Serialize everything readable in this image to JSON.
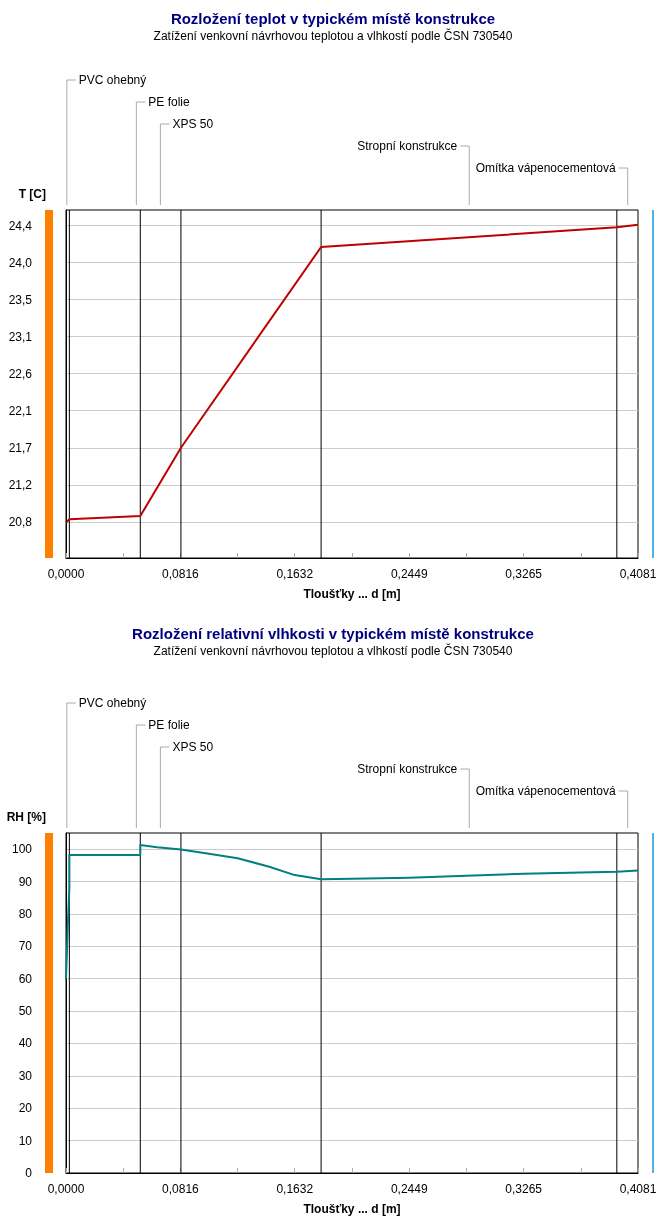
{
  "chart_data": [
    {
      "type": "line",
      "title": "Rozložení teplot v typickém místě konstrukce",
      "subtitle": "Zatížení venkovní návrhovou teplotou a vlhkostí podle ČSN 730540",
      "xlabel": "Tloušťky ... d [m]",
      "ylabel": "T [C]",
      "x": [
        0,
        0.0024,
        0.053,
        0.082,
        0.182,
        0.393,
        0.4081
      ],
      "series": [
        {
          "color": "#c00000",
          "values": [
            20.79,
            20.83,
            20.87,
            21.7,
            24.14,
            24.38,
            24.41
          ]
        }
      ],
      "xlim": [
        0,
        0.4081
      ],
      "xticks": [
        {
          "value": 0,
          "label": "0,0000"
        },
        {
          "value": 0.0408,
          "label": null
        },
        {
          "value": 0.0816,
          "label": "0,0816"
        },
        {
          "value": 0.1224,
          "label": null
        },
        {
          "value": 0.1632,
          "label": "0,1632"
        },
        {
          "value": 0.204,
          "label": null
        },
        {
          "value": 0.2449,
          "label": "0,2449"
        },
        {
          "value": 0.2857,
          "label": null
        },
        {
          "value": 0.3265,
          "label": "0,3265"
        },
        {
          "value": 0.3673,
          "label": null
        },
        {
          "value": 0.4081,
          "label": "0,4081"
        }
      ],
      "ylim": [
        20.36,
        24.59
      ],
      "yticks": [
        {
          "value": 20.8,
          "label": "20,8"
        },
        {
          "value": 21.25,
          "label": "21,2"
        },
        {
          "value": 21.7,
          "label": "21,7"
        },
        {
          "value": 22.15,
          "label": "22,1"
        },
        {
          "value": 22.6,
          "label": "22,6"
        },
        {
          "value": 23.05,
          "label": "23,1"
        },
        {
          "value": 23.5,
          "label": "23,5"
        },
        {
          "value": 23.95,
          "label": "24,0"
        },
        {
          "value": 24.4,
          "label": "24,4"
        }
      ],
      "ref_lines": [
        {
          "axis": "x",
          "value": 0.0024,
          "color": "#000000"
        },
        {
          "axis": "x",
          "value": 0.053,
          "color": "#000000"
        },
        {
          "axis": "x",
          "value": 0.082,
          "color": "#000000"
        },
        {
          "axis": "x",
          "value": 0.182,
          "color": "#000000"
        },
        {
          "axis": "x",
          "value": 0.393,
          "color": "#000000"
        }
      ],
      "annotations": [
        "PVC ohebný",
        "PE folie",
        "XPS 50",
        "Stropní konstrukce",
        "Omítka vápenocementová"
      ],
      "grid": "y",
      "marker": "none",
      "line_style": "solid"
    },
    {
      "type": "line",
      "title": "Rozložení relativní vlhkosti v typickém místě konstrukce",
      "subtitle": "Zatížení venkovní návrhovou teplotou a vlhkostí podle ČSN 730540",
      "xlabel": "Tloušťky ... d [m]",
      "ylabel": "RH [%]",
      "x": [
        0,
        0.0008,
        0.0016,
        0.0024,
        0.0024,
        0.053,
        0.053,
        0.065,
        0.082,
        0.102,
        0.1224,
        0.145,
        0.1632,
        0.182,
        0.204,
        0.2449,
        0.2857,
        0.3265,
        0.3673,
        0.393,
        0.4081
      ],
      "series": [
        {
          "color": "#008080",
          "values": [
            60,
            70,
            80,
            88,
            98.2,
            98.2,
            101.3,
            100.6,
            99.9,
            98.6,
            97.2,
            94.6,
            92,
            90.7,
            90.9,
            91.2,
            91.8,
            92.4,
            92.8,
            93,
            93.4
          ]
        }
      ],
      "xlim": [
        0,
        0.4081
      ],
      "xticks": [
        {
          "value": 0,
          "label": "0,0000"
        },
        {
          "value": 0.0408,
          "label": null
        },
        {
          "value": 0.0816,
          "label": "0,0816"
        },
        {
          "value": 0.1224,
          "label": null
        },
        {
          "value": 0.1632,
          "label": "0,1632"
        },
        {
          "value": 0.204,
          "label": null
        },
        {
          "value": 0.2449,
          "label": "0,2449"
        },
        {
          "value": 0.2857,
          "label": null
        },
        {
          "value": 0.3265,
          "label": "0,3265"
        },
        {
          "value": 0.3673,
          "label": null
        },
        {
          "value": 0.4081,
          "label": "0,4081"
        }
      ],
      "ylim": [
        0,
        105
      ],
      "yticks": [
        0,
        10,
        20,
        30,
        40,
        50,
        60,
        70,
        80,
        90,
        100
      ],
      "ref_lines": [
        {
          "axis": "x",
          "value": 0.0024,
          "color": "#000000"
        },
        {
          "axis": "x",
          "value": 0.053,
          "color": "#000000"
        },
        {
          "axis": "x",
          "value": 0.082,
          "color": "#000000"
        },
        {
          "axis": "x",
          "value": 0.182,
          "color": "#000000"
        },
        {
          "axis": "x",
          "value": 0.393,
          "color": "#000000"
        }
      ],
      "annotations": [
        "PVC ohebný",
        "PE folie",
        "XPS 50",
        "Stropní konstrukce",
        "Omítka vápenocementová"
      ],
      "grid": "y",
      "marker": "none",
      "line_style": "solid"
    }
  ]
}
